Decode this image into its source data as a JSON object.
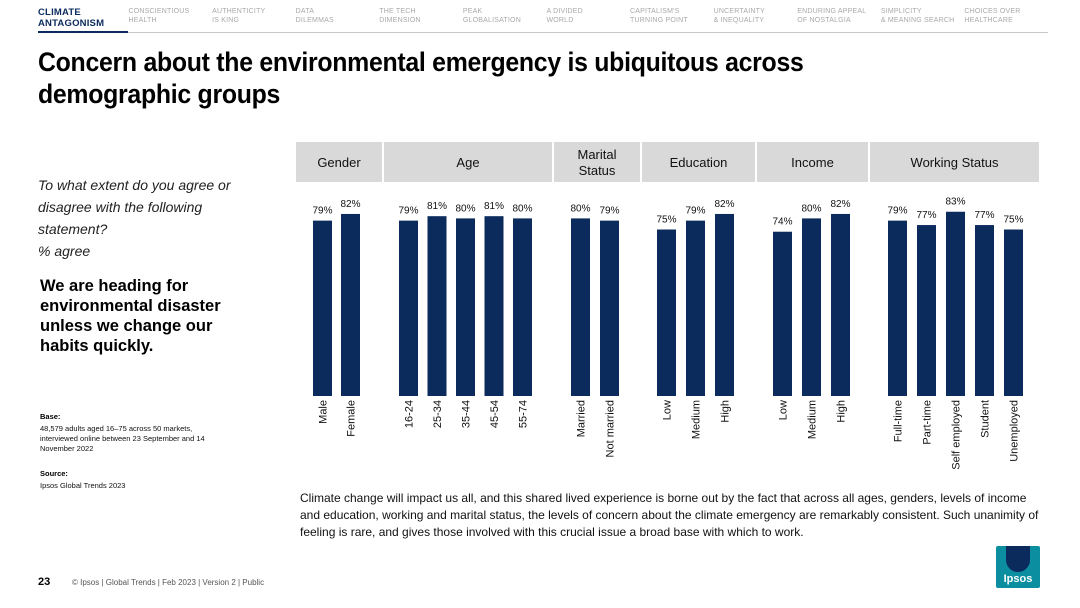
{
  "nav": {
    "tabs": [
      {
        "label": "CLIMATE\nANTAGONISM",
        "active": true
      },
      {
        "label": "CONSCIENTIOUS\nHEALTH",
        "active": false
      },
      {
        "label": "AUTHENTICITY\nIS KING",
        "active": false
      },
      {
        "label": "DATA\nDILEMMAS",
        "active": false
      },
      {
        "label": "THE TECH\nDIMENSION",
        "active": false
      },
      {
        "label": "PEAK\nGLOBALISATION",
        "active": false
      },
      {
        "label": "A DIVIDED\nWORLD",
        "active": false
      },
      {
        "label": "CAPITALISM'S\nTURNING POINT",
        "active": false
      },
      {
        "label": "UNCERTAINTY\n& INEQUALITY",
        "active": false
      },
      {
        "label": "ENDURING APPEAL\nOF NOSTALGIA",
        "active": false
      },
      {
        "label": "SIMPLICITY\n& MEANING SEARCH",
        "active": false
      },
      {
        "label": "CHOICES OVER\nHEALTHCARE",
        "active": false
      }
    ]
  },
  "title": "Concern about the environmental emergency is ubiquitous across demographic groups",
  "question": "To what extent do you agree or disagree with the following statement?\n% agree",
  "statement": "We are heading for environmental disaster unless we change our habits quickly.",
  "base": {
    "heading": "Base:",
    "text": "48,579 adults aged 16–75 across 50 markets, interviewed online between 23 September and 14 November 2022"
  },
  "source": {
    "heading": "Source:",
    "text": "Ipsos Global Trends 2023"
  },
  "caption": "Climate change will impact us all, and this shared lived experience is borne out by the fact that across all ages, genders, levels of income and education, working and marital status, the levels of concern about the climate emergency are remarkably consistent. Such unanimity of feeling is rare, and gives those involved with this crucial issue a broad base with which to work.",
  "footer": {
    "page": "23",
    "text": "© Ipsos | Global Trends | Feb 2023 | Version 2 | Public"
  },
  "logo_text": "Ipsos",
  "colors": {
    "bar": "#0b2b5c",
    "header_bg": "#d9d9d9",
    "accent": "#0b2b5c",
    "logo": "#0b8fa0"
  },
  "chart_data": {
    "type": "bar",
    "unit": "%",
    "groups": [
      {
        "name": "Gender",
        "categories": [
          "Male",
          "Female"
        ],
        "values": [
          79,
          82
        ]
      },
      {
        "name": "Age",
        "categories": [
          "16-24",
          "25-34",
          "35-44",
          "45-54",
          "55-74"
        ],
        "values": [
          79,
          81,
          80,
          81,
          80
        ]
      },
      {
        "name": "Marital\nStatus",
        "categories": [
          "Married",
          "Not married"
        ],
        "values": [
          80,
          79
        ]
      },
      {
        "name": "Education",
        "categories": [
          "Low",
          "Medium",
          "High"
        ],
        "values": [
          75,
          79,
          82
        ]
      },
      {
        "name": "Income",
        "categories": [
          "Low",
          "Medium",
          "High"
        ],
        "values": [
          74,
          80,
          82
        ]
      },
      {
        "name": "Working Status",
        "categories": [
          "Full-time",
          "Part-time",
          "Self employed",
          "Student",
          "Unemployed"
        ],
        "values": [
          79,
          77,
          83,
          77,
          75
        ]
      }
    ]
  }
}
